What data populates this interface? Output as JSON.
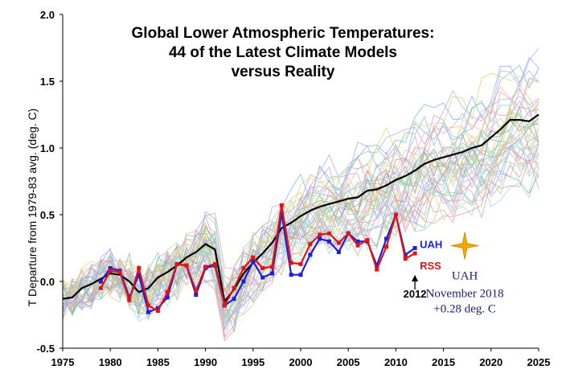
{
  "chart_data": {
    "type": "line",
    "title": [
      "Global Lower Atmospheric Temperatures:",
      "44 of the Latest Climate Models",
      "versus Reality"
    ],
    "ylabel": "T Departure from 1979-83 avg. (deg. C)",
    "xlim": [
      1975,
      2025
    ],
    "ylim": [
      -0.5,
      2.0
    ],
    "x_ticks": [
      "1975",
      "1980",
      "1985",
      "1990",
      "1995",
      "2000",
      "2005",
      "2010",
      "2015",
      "2020",
      "2025"
    ],
    "y_ticks": [
      "-0.5",
      "0.0",
      "0.5",
      "1.0",
      "1.5",
      "2.0"
    ],
    "grid": false,
    "model_mean": {
      "color": "#000000",
      "x": [
        1975,
        1976,
        1977,
        1978,
        1979,
        1980,
        1981,
        1982,
        1983,
        1984,
        1985,
        1986,
        1987,
        1988,
        1989,
        1990,
        1991,
        1992,
        1993,
        1994,
        1995,
        1996,
        1997,
        1998,
        1999,
        2000,
        2001,
        2002,
        2003,
        2004,
        2005,
        2006,
        2007,
        2008,
        2009,
        2010,
        2011,
        2012,
        2013,
        2014,
        2015,
        2016,
        2017,
        2018,
        2019,
        2020,
        2021,
        2022,
        2023,
        2024,
        2025
      ],
      "y": [
        -0.13,
        -0.12,
        -0.05,
        -0.02,
        0.02,
        0.06,
        0.05,
        0.0,
        -0.08,
        -0.05,
        0.03,
        0.07,
        0.12,
        0.18,
        0.22,
        0.28,
        0.24,
        -0.15,
        -0.06,
        0.06,
        0.14,
        0.21,
        0.29,
        0.4,
        0.44,
        0.49,
        0.53,
        0.56,
        0.58,
        0.6,
        0.62,
        0.63,
        0.68,
        0.69,
        0.72,
        0.76,
        0.79,
        0.83,
        0.88,
        0.91,
        0.93,
        0.95,
        0.97,
        1.0,
        1.02,
        1.08,
        1.14,
        1.21,
        1.21,
        1.2,
        1.25
      ]
    },
    "series": [
      {
        "name": "UAH",
        "color": "#1f1fd6",
        "x": [
          1979,
          1980,
          1981,
          1982,
          1983,
          1984,
          1985,
          1986,
          1987,
          1988,
          1989,
          1990,
          1991,
          1992,
          1993,
          1994,
          1995,
          1996,
          1997,
          1998,
          1999,
          2000,
          2001,
          2002,
          2003,
          2004,
          2005,
          2006,
          2007,
          2008,
          2009,
          2010,
          2011,
          2012
        ],
        "y": [
          0.0,
          0.1,
          0.08,
          -0.12,
          0.05,
          -0.23,
          -0.2,
          -0.12,
          0.13,
          0.12,
          -0.1,
          0.1,
          0.12,
          -0.18,
          -0.13,
          0.0,
          0.15,
          0.03,
          0.06,
          0.51,
          0.05,
          0.05,
          0.2,
          0.32,
          0.3,
          0.22,
          0.36,
          0.3,
          0.3,
          0.12,
          0.32,
          0.5,
          0.2,
          0.25
        ]
      },
      {
        "name": "RSS",
        "color": "#e01414",
        "x": [
          1979,
          1980,
          1981,
          1982,
          1983,
          1984,
          1985,
          1986,
          1987,
          1988,
          1989,
          1990,
          1991,
          1992,
          1993,
          1994,
          1995,
          1996,
          1997,
          1998,
          1999,
          2000,
          2001,
          2002,
          2003,
          2004,
          2005,
          2006,
          2007,
          2008,
          2009,
          2010,
          2011,
          2012
        ],
        "y": [
          -0.05,
          0.08,
          0.07,
          -0.14,
          0.1,
          -0.18,
          -0.22,
          -0.08,
          0.13,
          0.12,
          -0.07,
          0.11,
          0.13,
          -0.18,
          -0.05,
          0.1,
          0.18,
          0.1,
          0.11,
          0.57,
          0.14,
          0.13,
          0.28,
          0.35,
          0.36,
          0.29,
          0.36,
          0.27,
          0.31,
          0.09,
          0.26,
          0.5,
          0.17,
          0.21
        ]
      }
    ],
    "model_run_count": 44,
    "annotations": {
      "year_marker": "2012",
      "star_label": "UAH",
      "note_line1": "November 2018",
      "note_line2": "+0.28 deg. C",
      "star_point": {
        "x": 2018,
        "y": 0.28
      },
      "star_color": "#f2a800"
    }
  }
}
